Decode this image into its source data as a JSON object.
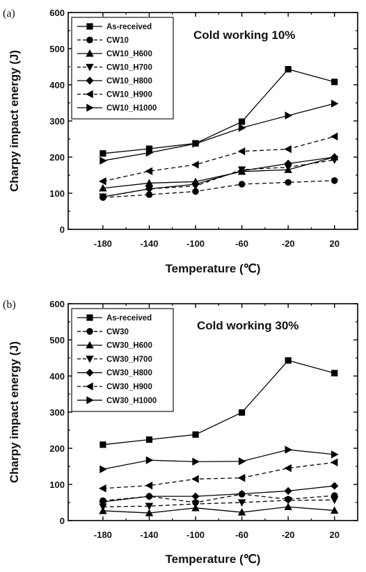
{
  "chart_data": [
    {
      "type": "line",
      "panel_label": "(a)",
      "annotation": "Cold working 10%",
      "xlabel": "Temperature (℃)",
      "ylabel": "Charpy impact energy (J)",
      "x": [
        -180,
        -140,
        -100,
        -60,
        -20,
        20
      ],
      "x_tick_labels": [
        "-180",
        "-140",
        "-100",
        "-60",
        "-20",
        "20"
      ],
      "xlim": [
        -210,
        40
      ],
      "ylim": [
        0,
        600
      ],
      "y_ticks": [
        0,
        100,
        200,
        300,
        400,
        500,
        600
      ],
      "legend_position": "top-left",
      "grid": false,
      "series": [
        {
          "name": "As-received",
          "marker": "square",
          "dash": "solid",
          "values": [
            210,
            223,
            238,
            298,
            443,
            408
          ]
        },
        {
          "name": "CW10",
          "marker": "circle",
          "dash": "dashed",
          "values": [
            88,
            96,
            105,
            125,
            130,
            135
          ]
        },
        {
          "name": "CW10_H600",
          "marker": "triangle-up",
          "dash": "solid",
          "values": [
            114,
            128,
            132,
            160,
            165,
            200
          ]
        },
        {
          "name": "CW10_H700",
          "marker": "triangle-down",
          "dash": "dashed",
          "values": [
            90,
            112,
            120,
            165,
            172,
            192
          ]
        },
        {
          "name": "CW10_H800",
          "marker": "diamond",
          "dash": "solid",
          "values": [
            90,
            112,
            125,
            162,
            182,
            200
          ]
        },
        {
          "name": "CW10_H900",
          "marker": "triangle-left",
          "dash": "dashed",
          "values": [
            133,
            161,
            179,
            216,
            222,
            257
          ]
        },
        {
          "name": "CW10_H1000",
          "marker": "triangle-right",
          "dash": "solid",
          "values": [
            190,
            212,
            237,
            281,
            315,
            348
          ]
        }
      ]
    },
    {
      "type": "line",
      "panel_label": "(b)",
      "annotation": "Cold working 30%",
      "xlabel": "Temperature (℃)",
      "ylabel": "Charpy impact energy (J)",
      "x": [
        -180,
        -140,
        -100,
        -60,
        -20,
        20
      ],
      "x_tick_labels": [
        "-180",
        "-140",
        "-100",
        "-60",
        "-20",
        "20"
      ],
      "xlim": [
        -210,
        40
      ],
      "ylim": [
        0,
        600
      ],
      "y_ticks": [
        0,
        100,
        200,
        300,
        400,
        500,
        600
      ],
      "legend_position": "top-left",
      "grid": false,
      "series": [
        {
          "name": "As-received",
          "marker": "square",
          "dash": "solid",
          "values": [
            210,
            224,
            238,
            299,
            443,
            408
          ]
        },
        {
          "name": "CW30",
          "marker": "circle",
          "dash": "dashed",
          "values": [
            55,
            67,
            50,
            73,
            59,
            69
          ]
        },
        {
          "name": "CW30_H600",
          "marker": "triangle-up",
          "dash": "solid",
          "values": [
            27,
            21,
            35,
            23,
            38,
            28
          ]
        },
        {
          "name": "CW30_H700",
          "marker": "triangle-down",
          "dash": "dashed",
          "values": [
            38,
            40,
            46,
            50,
            56,
            57
          ]
        },
        {
          "name": "CW30_H800",
          "marker": "diamond",
          "dash": "solid",
          "values": [
            52,
            67,
            67,
            74,
            82,
            96
          ]
        },
        {
          "name": "CW30_H900",
          "marker": "triangle-left",
          "dash": "dashed",
          "values": [
            89,
            97,
            115,
            118,
            145,
            161
          ]
        },
        {
          "name": "CW30_H1000",
          "marker": "triangle-right",
          "dash": "solid",
          "values": [
            142,
            167,
            163,
            164,
            196,
            183
          ]
        }
      ]
    }
  ]
}
